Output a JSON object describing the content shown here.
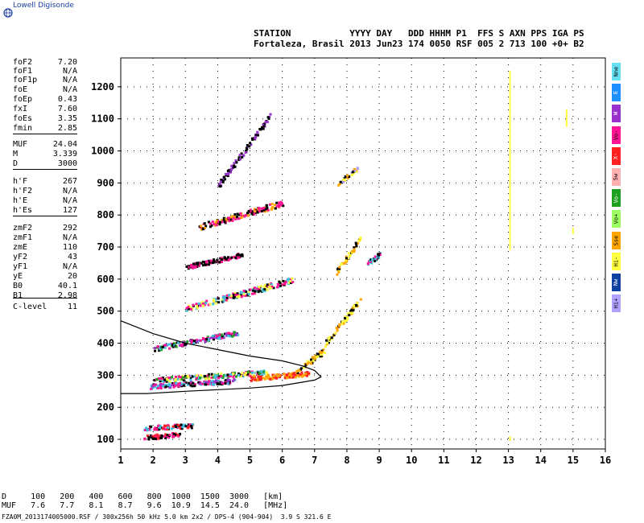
{
  "logo": {
    "text": "Lowell Digisonde"
  },
  "header": {
    "line1": "STATION           YYYY DAY   DDD HHHM P1  FFS S AXN PPS IGA PS",
    "line2": "Fortaleza, Brasil 2013 Jun23 174 0050 RSF 005 2 713 100 +0+ B2"
  },
  "params": [
    {
      "label": "foF2",
      "value": "7.20"
    },
    {
      "label": "foF1",
      "value": "N/A"
    },
    {
      "label": "foF1p",
      "value": "N/A"
    },
    {
      "label": "foE",
      "value": "N/A"
    },
    {
      "label": "foEp",
      "value": "0.43"
    },
    {
      "label": "fxI",
      "value": "7.60"
    },
    {
      "label": "foEs",
      "value": "3.35"
    },
    {
      "label": "fmin",
      "value": "2.85"
    },
    {
      "label": "MUF",
      "value": "24.04"
    },
    {
      "label": "M",
      "value": "3.339"
    },
    {
      "label": "D",
      "value": "3000"
    },
    {
      "label": "h'F",
      "value": "267"
    },
    {
      "label": "h'F2",
      "value": "N/A"
    },
    {
      "label": "h'E",
      "value": "N/A"
    },
    {
      "label": "h'Es",
      "value": "127"
    },
    {
      "label": "zmF2",
      "value": "292"
    },
    {
      "label": "zmF1",
      "value": "N/A"
    },
    {
      "label": "zmE",
      "value": "110"
    },
    {
      "label": "yF2",
      "value": "43"
    },
    {
      "label": "yF1",
      "value": "N/A"
    },
    {
      "label": "yE",
      "value": "20"
    },
    {
      "label": "B0",
      "value": "40.1"
    },
    {
      "label": "B1",
      "value": "2.98"
    },
    {
      "label": "C-level",
      "value": "11"
    }
  ],
  "legend": [
    {
      "label": "Nne",
      "color": "#66e0f0"
    },
    {
      "label": "E",
      "color": "#1e90ff"
    },
    {
      "label": "W",
      "color": "#9932cc"
    },
    {
      "label": "Vo-",
      "color": "#ff1493"
    },
    {
      "label": "X-",
      "color": "#ff2020"
    },
    {
      "label": "Sw",
      "color": "#ffb0b0"
    },
    {
      "label": "Vo-",
      "color": "#20a020"
    },
    {
      "label": "Vo+",
      "color": "#a0ff60"
    },
    {
      "label": "Sse",
      "color": "#ffa500"
    },
    {
      "label": "Hi-",
      "color": "#ffff40"
    },
    {
      "label": "Nw",
      "color": "#1040a0"
    },
    {
      "label": "Hi+",
      "color": "#b0a0ff"
    }
  ],
  "footer": {
    "d_row": "D     100   200   400   600   800  1000  1500  3000   [km]",
    "muf_row": "MUF   7.6   7.7   8.1   8.7   9.6  10.9  14.5  24.0   [MHz]",
    "file_line": "FZA0M_2013174005000.RSF / 300x256h 50 kHz 5.0 km 2x2 / DPS-4 (904-904)  3.9 S 321.6 E"
  },
  "chart_data": {
    "type": "scatter",
    "xlim": [
      1,
      16
    ],
    "ylim": [
      70,
      1290
    ],
    "x_ticks": [
      1,
      2,
      3,
      4,
      5,
      6,
      7,
      8,
      9,
      10,
      11,
      12,
      13,
      14,
      15,
      16
    ],
    "y_ticks": [
      100,
      200,
      300,
      400,
      500,
      600,
      700,
      800,
      900,
      1000,
      1100,
      1200
    ],
    "grid": true,
    "colors": {
      "magenta": "#ff1493",
      "black": "#000000",
      "cyan": "#40c0e0",
      "red": "#ff2020",
      "orange": "#ffa500",
      "yellow": "#ffff40",
      "green": "#20a020",
      "purple": "#9932cc",
      "lavender": "#b0a0ff",
      "blue": "#1e90ff"
    },
    "traces": [
      {
        "x": [
          1.7,
          2.8
        ],
        "y": [
          108,
          118
        ],
        "colors": [
          "red",
          "magenta",
          "black"
        ]
      },
      {
        "x": [
          1.7,
          3.2
        ],
        "y": [
          138,
          146
        ],
        "colors": [
          "magenta",
          "black",
          "red",
          "cyan"
        ]
      },
      {
        "x": [
          1.9,
          4.5
        ],
        "y": [
          268,
          285
        ],
        "colors": [
          "magenta",
          "cyan",
          "black",
          "purple"
        ]
      },
      {
        "x": [
          2.0,
          5.5
        ],
        "y": [
          288,
          312
        ],
        "colors": [
          "magenta",
          "black",
          "cyan",
          "yellow",
          "green"
        ]
      },
      {
        "x": [
          5.0,
          6.8
        ],
        "y": [
          293,
          308
        ],
        "colors": [
          "red",
          "orange"
        ]
      },
      {
        "x": [
          6.4,
          7.3
        ],
        "y": [
          315,
          380
        ],
        "colors": [
          "orange",
          "yellow",
          "black"
        ]
      },
      {
        "x": [
          7.3,
          8.4
        ],
        "y": [
          400,
          540
        ],
        "colors": [
          "orange",
          "yellow",
          "black"
        ]
      },
      {
        "x": [
          2.0,
          4.6
        ],
        "y": [
          385,
          435
        ],
        "colors": [
          "magenta",
          "black",
          "cyan",
          "green",
          "purple"
        ]
      },
      {
        "x": [
          3.0,
          6.3
        ],
        "y": [
          510,
          600
        ],
        "colors": [
          "magenta",
          "black",
          "cyan",
          "yellow"
        ]
      },
      {
        "x": [
          3.0,
          4.8
        ],
        "y": [
          640,
          680
        ],
        "colors": [
          "magenta",
          "black"
        ]
      },
      {
        "x": [
          7.6,
          8.4
        ],
        "y": [
          615,
          730
        ],
        "colors": [
          "orange",
          "black",
          "yellow"
        ]
      },
      {
        "x": [
          8.6,
          9.0
        ],
        "y": [
          650,
          680
        ],
        "colors": [
          "black",
          "magenta",
          "cyan"
        ]
      },
      {
        "x": [
          3.4,
          6.0
        ],
        "y": [
          765,
          840
        ],
        "colors": [
          "black",
          "orange",
          "magenta"
        ]
      },
      {
        "x": [
          7.7,
          8.3
        ],
        "y": [
          900,
          950
        ],
        "colors": [
          "orange",
          "yellow",
          "black",
          "lavender"
        ]
      },
      {
        "x": [
          4.0,
          5.6
        ],
        "y": [
          895,
          1110
        ],
        "colors": [
          "black",
          "purple"
        ]
      }
    ],
    "vertical_traces": [
      {
        "x": 13.05,
        "y1": 690,
        "y2": 1250,
        "color": "yellow"
      },
      {
        "x": 14.8,
        "y1": 1075,
        "y2": 1130,
        "color": "yellow"
      },
      {
        "x": 13.05,
        "y1": 95,
        "y2": 110,
        "color": "yellow"
      },
      {
        "x": 15.0,
        "y1": 740,
        "y2": 760,
        "color": "yellow"
      }
    ],
    "profile_curve": {
      "x": [
        1.0,
        2.0,
        3.0,
        4.0,
        5.0,
        6.0,
        6.6,
        7.0,
        7.2,
        7.0,
        6.6,
        6.0,
        5.0,
        4.0,
        3.0,
        2.5,
        2.0,
        1.8,
        1.0
      ],
      "y": [
        470,
        430,
        400,
        380,
        360,
        345,
        330,
        315,
        295,
        285,
        278,
        268,
        260,
        255,
        250,
        247,
        244,
        243,
        243
      ]
    }
  }
}
